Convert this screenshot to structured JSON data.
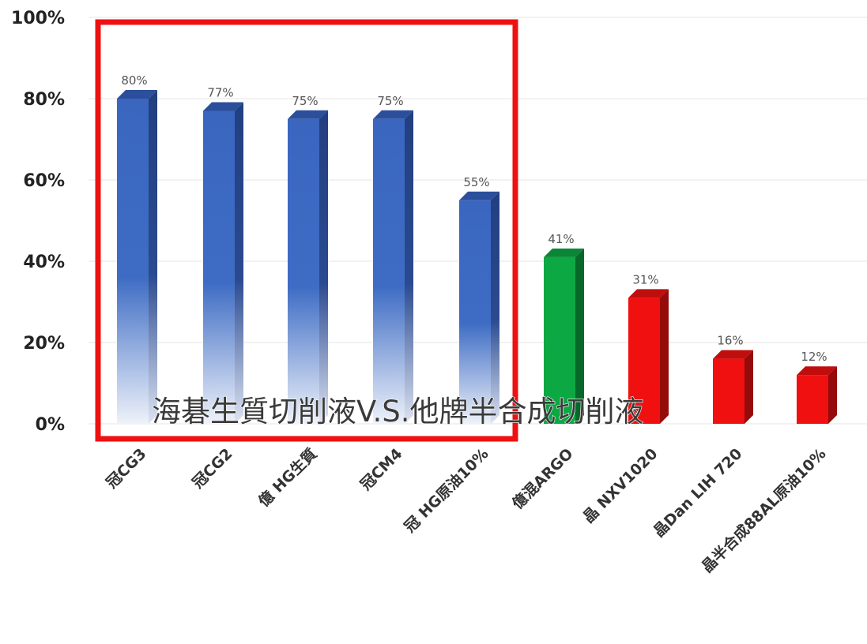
{
  "chart_data": {
    "type": "bar",
    "categories": [
      "冠CG3",
      "冠CG2",
      "億 HG生質",
      "冠CM4",
      "冠 HG原油10%",
      "億混ARGO",
      "晶 NXV1020",
      "晶Dan LIH 720",
      "晶半合成88AL原油10%"
    ],
    "values": [
      80,
      77,
      75,
      75,
      55,
      41,
      31,
      16,
      12
    ],
    "value_labels": [
      "80%",
      "77%",
      "75%",
      "75%",
      "55%",
      "41%",
      "31%",
      "16%",
      "12%"
    ],
    "bar_colors": [
      "#3a66c0",
      "#3a66c0",
      "#3a66c0",
      "#3a66c0",
      "#3a66c0",
      "#0ca843",
      "#f01010",
      "#f01010",
      "#f01010"
    ],
    "ylim": [
      0,
      100
    ],
    "yticks": [
      "0%",
      "20%",
      "40%",
      "60%",
      "80%",
      "100%"
    ],
    "grid": true,
    "highlight_box_color": "#ee1111",
    "overlay_text": "海碁生質切削液V.S.他牌半合成切削液"
  }
}
